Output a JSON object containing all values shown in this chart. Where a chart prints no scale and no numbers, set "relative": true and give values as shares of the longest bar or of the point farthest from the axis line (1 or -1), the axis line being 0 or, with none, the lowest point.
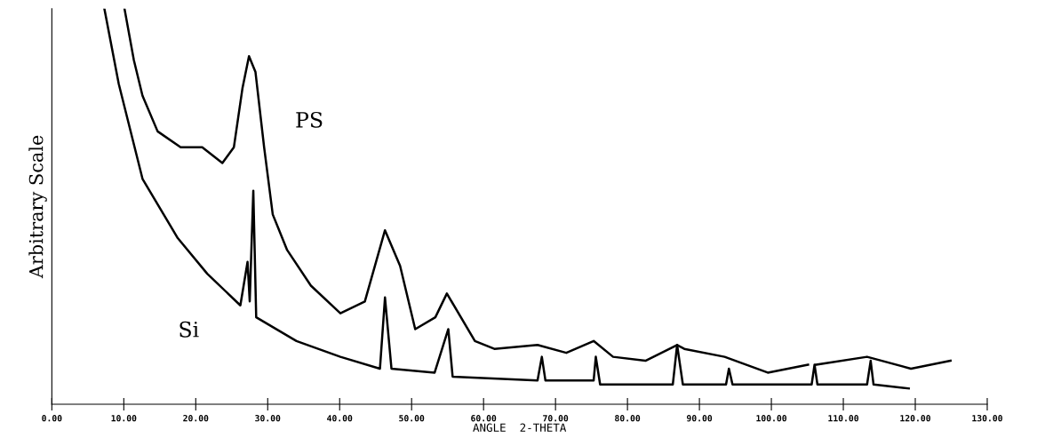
{
  "chart_data": {
    "type": "line",
    "relative": true,
    "xlabel": "ANGLE  2-THETA",
    "ylabel": "Arbitrary Scale",
    "xlim": [
      0,
      130
    ],
    "xticks": [
      {
        "value": 0,
        "label": "0.00"
      },
      {
        "value": 10,
        "label": "10.00"
      },
      {
        "value": 20,
        "label": "20.00"
      },
      {
        "value": 30,
        "label": "30.00"
      },
      {
        "value": 40,
        "label": "40.00"
      },
      {
        "value": 50,
        "label": "50.00"
      },
      {
        "value": 60,
        "label": "60.00"
      },
      {
        "value": 70,
        "label": "70.00"
      },
      {
        "value": 80,
        "label": "80.00"
      },
      {
        "value": 90,
        "label": "90.00"
      },
      {
        "value": 100,
        "label": "100.00"
      },
      {
        "value": 110,
        "label": "110.00"
      },
      {
        "value": 120,
        "label": "120.00"
      },
      {
        "value": 130,
        "label": "130.00"
      }
    ],
    "grid": false,
    "legend": false,
    "marker": "none",
    "line_style": "solid",
    "series": [
      {
        "name": "PS",
        "color": "#000000",
        "x": [
          10.1,
          11.4,
          12.6,
          14.7,
          17.9,
          20.9,
          23.7,
          25.3,
          26.5,
          27.4,
          28.3,
          29.5,
          30.7,
          32.7,
          36.0,
          40.1,
          43.5,
          46.3,
          48.4,
          50.5,
          53.3,
          54.9,
          58.8,
          61.5,
          67.5,
          71.5,
          75.3,
          78.0,
          82.5,
          86.9,
          87.9,
          93.5,
          99.5,
          105.1,
          105.6,
          106.2,
          113.3,
          119.4,
          124.9
        ],
        "values": [
          1.0,
          0.87,
          0.78,
          0.69,
          0.65,
          0.65,
          0.61,
          0.65,
          0.8,
          0.88,
          0.84,
          0.65,
          0.48,
          0.39,
          0.3,
          0.23,
          0.26,
          0.44,
          0.35,
          0.19,
          0.22,
          0.28,
          0.16,
          0.14,
          0.15,
          0.13,
          0.16,
          0.12,
          0.11,
          0.15,
          0.14,
          0.12,
          0.08,
          0.1,
          null,
          0.1,
          0.12,
          0.09,
          0.11
        ]
      },
      {
        "name": "Si",
        "color": "#000000",
        "x": [
          7.3,
          9.3,
          12.6,
          17.5,
          21.6,
          26.2,
          27.2,
          27.5,
          28.0,
          28.4,
          34.0,
          40.1,
          45.6,
          46.3,
          47.2,
          53.2,
          55.1,
          55.7,
          67.5,
          68.1,
          68.6,
          75.3,
          75.6,
          76.2,
          86.3,
          86.9,
          87.7,
          93.7,
          94.1,
          94.6,
          105.6,
          106.0,
          106.4,
          113.3,
          113.8,
          114.2,
          119.1
        ],
        "values": [
          1.0,
          0.81,
          0.57,
          0.42,
          0.33,
          0.25,
          0.36,
          0.26,
          0.54,
          0.22,
          0.16,
          0.12,
          0.09,
          0.27,
          0.09,
          0.08,
          0.19,
          0.07,
          0.06,
          0.12,
          0.06,
          0.06,
          0.12,
          0.05,
          0.05,
          0.15,
          0.05,
          0.05,
          0.09,
          0.05,
          0.05,
          0.1,
          0.05,
          0.05,
          0.11,
          0.05,
          0.04
        ]
      }
    ]
  }
}
